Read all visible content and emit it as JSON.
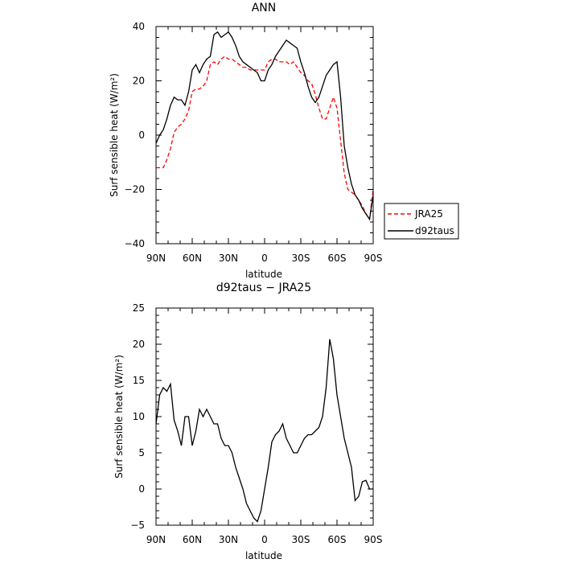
{
  "chart_data": [
    {
      "type": "line",
      "title": "ANN",
      "xlabel": "latitude",
      "ylabel": "Surf sensible heat (W/m²)",
      "xlim": [
        90,
        -90
      ],
      "ylim": [
        -40,
        40
      ],
      "xticks": [
        90,
        60,
        30,
        0,
        -30,
        -60,
        -90
      ],
      "xtick_labels": [
        "90N",
        "60N",
        "30N",
        "0",
        "30S",
        "60S",
        "90S"
      ],
      "yticks": [
        -40,
        -20,
        0,
        20,
        40
      ],
      "ytick_labels": [
        "−40",
        "−20",
        "0",
        "20",
        "40"
      ],
      "legend": "right",
      "series": [
        {
          "name": "JRA25",
          "color": "#ff0000",
          "dash": "dashed",
          "x": [
            90,
            87,
            84,
            81,
            78,
            75,
            72,
            69,
            66,
            63,
            60,
            57,
            54,
            51,
            48,
            45,
            42,
            39,
            36,
            33,
            30,
            27,
            24,
            21,
            18,
            15,
            12,
            9,
            6,
            3,
            0,
            -3,
            -6,
            -9,
            -12,
            -15,
            -18,
            -21,
            -24,
            -27,
            -30,
            -33,
            -36,
            -39,
            -42,
            -45,
            -48,
            -51,
            -54,
            -57,
            -60,
            -63,
            -66,
            -69,
            -72,
            -75,
            -78,
            -81,
            -84,
            -87,
            -90
          ],
          "y": [
            -12,
            -12,
            -12,
            -9,
            -5,
            1,
            3,
            4,
            6,
            9,
            16,
            17,
            17,
            18,
            20,
            26,
            27,
            26,
            28,
            29,
            28,
            28,
            27,
            26,
            25,
            25,
            24,
            24,
            24,
            24,
            24,
            27,
            28,
            28,
            27,
            27,
            27,
            26,
            27,
            25,
            23,
            22,
            20,
            19,
            15,
            10,
            6,
            6,
            10,
            14,
            10,
            -2,
            -14,
            -20,
            -21,
            -22,
            -24,
            -26,
            -29,
            -31,
            -20
          ]
        },
        {
          "name": "d92taus",
          "color": "#000000",
          "dash": "solid",
          "x": [
            90,
            87,
            84,
            81,
            78,
            75,
            72,
            69,
            66,
            63,
            60,
            57,
            54,
            51,
            48,
            45,
            42,
            39,
            36,
            33,
            30,
            27,
            24,
            21,
            18,
            15,
            12,
            9,
            6,
            3,
            0,
            -3,
            -6,
            -9,
            -12,
            -15,
            -18,
            -21,
            -24,
            -27,
            -30,
            -33,
            -36,
            -39,
            -42,
            -45,
            -48,
            -51,
            -54,
            -57,
            -60,
            -63,
            -66,
            -69,
            -72,
            -75,
            -78,
            -81,
            -84,
            -87,
            -90
          ],
          "y": [
            -3,
            0,
            2,
            6,
            11,
            14,
            13,
            13,
            11,
            16,
            24,
            26,
            23,
            26,
            28,
            29,
            37,
            38,
            36,
            37,
            38,
            36,
            33,
            29,
            27,
            26,
            25,
            24,
            23,
            20,
            20,
            24,
            26,
            29,
            31,
            33,
            35,
            34,
            33,
            32,
            27,
            23,
            18,
            14,
            12,
            14,
            18,
            22,
            24,
            26,
            27,
            14,
            -4,
            -12,
            -18,
            -22,
            -24,
            -27,
            -29,
            -31,
            -22
          ]
        }
      ]
    },
    {
      "type": "line",
      "title": "d92taus − JRA25",
      "xlabel": "latitude",
      "ylabel": "Surf sensible heat (W/m²)",
      "xlim": [
        90,
        -90
      ],
      "ylim": [
        -5,
        25
      ],
      "xticks": [
        90,
        60,
        30,
        0,
        -30,
        -60,
        -90
      ],
      "xtick_labels": [
        "90N",
        "60N",
        "30N",
        "0",
        "30S",
        "60S",
        "90S"
      ],
      "yticks": [
        -5,
        0,
        5,
        10,
        15,
        20,
        25
      ],
      "ytick_labels": [
        "−5",
        "0",
        "5",
        "10",
        "15",
        "20",
        "25"
      ],
      "series": [
        {
          "color": "#000000",
          "dash": "solid",
          "x": [
            90,
            87,
            84,
            81,
            78,
            75,
            72,
            69,
            66,
            63,
            60,
            57,
            54,
            51,
            48,
            45,
            42,
            39,
            36,
            33,
            30,
            27,
            24,
            21,
            18,
            15,
            12,
            9,
            6,
            3,
            0,
            -3,
            -6,
            -9,
            -12,
            -15,
            -18,
            -21,
            -24,
            -27,
            -30,
            -33,
            -36,
            -39,
            -42,
            -45,
            -48,
            -51,
            -54,
            -57,
            -60,
            -63,
            -66,
            -69,
            -72,
            -75,
            -78,
            -81,
            -84,
            -87,
            -90
          ],
          "y": [
            9,
            13,
            14,
            13.5,
            14.5,
            9.5,
            8,
            6,
            10,
            10,
            6,
            8,
            11,
            10,
            11,
            10,
            9,
            9,
            7,
            6,
            6,
            5,
            3,
            1.5,
            0,
            -2,
            -3,
            -4,
            -4.5,
            -3,
            0,
            3,
            6.5,
            7.5,
            8,
            9,
            7,
            6,
            5,
            5,
            6,
            7,
            7.5,
            7.5,
            8,
            8.5,
            10,
            14,
            20.7,
            18,
            13,
            10,
            7,
            5,
            3,
            -1.6,
            -1,
            1,
            1.2,
            0,
            0
          ]
        }
      ]
    }
  ]
}
